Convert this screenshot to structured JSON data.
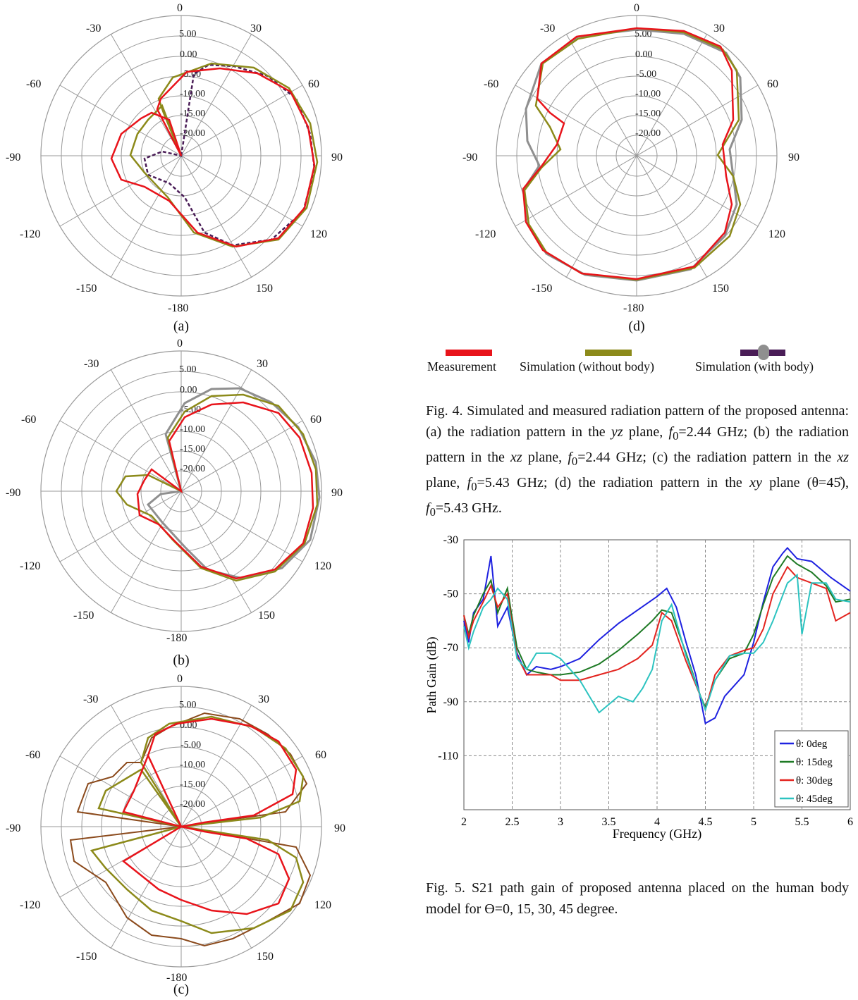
{
  "polar_common": {
    "angle_labels": [
      "0",
      "30",
      "60",
      "90",
      "120",
      "150",
      "-180",
      "-150",
      "-120",
      "-90",
      "-60",
      "-30"
    ],
    "ring_labels": [
      "5.00",
      "0.00",
      "-5.00",
      "-10.00",
      "-15.00",
      "-20.00"
    ]
  },
  "subfig_labels": {
    "a": "(a)",
    "b": "(b)",
    "c": "(c)",
    "d": "(d)"
  },
  "legend": {
    "measurement": "Measurement",
    "sim_without": "Simulation (without body)",
    "sim_with": "Simulation (with body)",
    "colors": {
      "measurement": "#e8141b",
      "sim_without": "#8c8a1a",
      "sim_with": "#4a1d57",
      "marker": "#8f8f8f"
    }
  },
  "fig4_caption": {
    "t1": "Fig. 4. Simulated and measured radiation pattern of the proposed antenna: (a) the radiation pattern in the ",
    "yz": "yz",
    "t2": " plane, ",
    "f0a": "f",
    "sub0a": "0",
    "t3": "=2.44 GHz; (b) the radiation pattern in the ",
    "xz1": "xz",
    "t4": " plane, ",
    "f0b": "f",
    "sub0b": "0",
    "t5": "=2.44 GHz; (c) the radiation pattern in the ",
    "xz2": "xz",
    "t6": " plane, ",
    "f0c": "f",
    "sub0c": "0",
    "t7": "=5.43 GHz; (d) the radiation pattern in the ",
    "xy": "xy",
    "t8": " plane (θ=45̊), ",
    "f0d": "f",
    "sub0d": "0",
    "t9": "=5.43 GHz."
  },
  "fig5_caption": "Fig. 5. S21 path gain of proposed antenna placed on the human body model for ϴ=0, 15, 30, 45 degree.",
  "chart_data": [
    {
      "type": "line",
      "title": "",
      "xlabel": "Frequency (GHz)",
      "ylabel": "Path Gain (dB)",
      "xlim": [
        2,
        6
      ],
      "ylim": [
        -130,
        -30
      ],
      "xticks": [
        "2",
        "2.5",
        "3",
        "3.5",
        "4",
        "4.5",
        "5",
        "5.5",
        "6"
      ],
      "yticks": [
        "-30",
        "-50",
        "-70",
        "-90",
        "-110"
      ],
      "legend_position": "bottom-right",
      "grid": true,
      "series": [
        {
          "name": "θ: 0deg",
          "color": "#1f22e0",
          "x": [
            2.0,
            2.05,
            2.1,
            2.2,
            2.28,
            2.35,
            2.45,
            2.55,
            2.65,
            2.75,
            2.9,
            3.0,
            3.2,
            3.4,
            3.6,
            3.8,
            4.0,
            4.1,
            4.2,
            4.3,
            4.4,
            4.5,
            4.6,
            4.7,
            4.8,
            4.9,
            5.0,
            5.1,
            5.2,
            5.3,
            5.35,
            5.45,
            5.6,
            5.8,
            6.0
          ],
          "y": [
            -60,
            -68,
            -57,
            -52,
            -36,
            -62,
            -55,
            -72,
            -80,
            -77,
            -78,
            -77,
            -74,
            -67,
            -61,
            -56,
            -51,
            -48,
            -55,
            -68,
            -80,
            -98,
            -96,
            -88,
            -84,
            -80,
            -68,
            -53,
            -40,
            -35,
            -33,
            -37,
            -38,
            -44,
            -49
          ]
        },
        {
          "name": "θ: 15deg",
          "color": "#1e7a25",
          "x": [
            2.0,
            2.05,
            2.1,
            2.2,
            2.28,
            2.35,
            2.45,
            2.55,
            2.65,
            2.75,
            2.9,
            3.0,
            3.2,
            3.4,
            3.6,
            3.8,
            3.95,
            4.05,
            4.15,
            4.3,
            4.45,
            4.5,
            4.6,
            4.75,
            4.9,
            5.0,
            5.1,
            5.2,
            5.35,
            5.45,
            5.6,
            5.75,
            5.85,
            6.0
          ],
          "y": [
            -58,
            -65,
            -58,
            -50,
            -45,
            -57,
            -48,
            -70,
            -78,
            -79,
            -80,
            -80,
            -79,
            -76,
            -71,
            -65,
            -60,
            -56,
            -57,
            -72,
            -88,
            -92,
            -82,
            -74,
            -72,
            -65,
            -54,
            -44,
            -36,
            -39,
            -42,
            -47,
            -53,
            -52
          ]
        },
        {
          "name": "θ: 30deg",
          "color": "#e3241f",
          "x": [
            2.0,
            2.05,
            2.1,
            2.2,
            2.28,
            2.35,
            2.45,
            2.55,
            2.65,
            2.75,
            2.9,
            3.0,
            3.2,
            3.4,
            3.6,
            3.8,
            3.95,
            4.05,
            4.15,
            4.3,
            4.45,
            4.5,
            4.6,
            4.75,
            4.9,
            5.0,
            5.1,
            5.2,
            5.35,
            5.45,
            5.6,
            5.75,
            5.85,
            6.0
          ],
          "y": [
            -58,
            -66,
            -60,
            -53,
            -47,
            -55,
            -50,
            -73,
            -80,
            -80,
            -80,
            -82,
            -82,
            -80,
            -78,
            -74,
            -69,
            -57,
            -60,
            -75,
            -88,
            -93,
            -80,
            -73,
            -71,
            -70,
            -63,
            -50,
            -40,
            -44,
            -46,
            -48,
            -60,
            -57
          ]
        },
        {
          "name": "θ: 45deg",
          "color": "#2cc3c0",
          "x": [
            2.0,
            2.05,
            2.1,
            2.2,
            2.28,
            2.35,
            2.45,
            2.55,
            2.65,
            2.75,
            2.9,
            3.0,
            3.2,
            3.4,
            3.6,
            3.75,
            3.85,
            3.95,
            4.05,
            4.15,
            4.3,
            4.45,
            4.5,
            4.6,
            4.75,
            4.9,
            5.0,
            5.1,
            5.2,
            5.35,
            5.45,
            5.5,
            5.6,
            5.75,
            5.85,
            6.0
          ],
          "y": [
            -62,
            -70,
            -64,
            -55,
            -52,
            -48,
            -52,
            -74,
            -78,
            -72,
            -72,
            -74,
            -82,
            -94,
            -88,
            -90,
            -85,
            -78,
            -60,
            -54,
            -73,
            -88,
            -93,
            -82,
            -73,
            -72,
            -72,
            -68,
            -60,
            -46,
            -43,
            -65,
            -46,
            -46,
            -52,
            -53
          ]
        }
      ]
    }
  ]
}
